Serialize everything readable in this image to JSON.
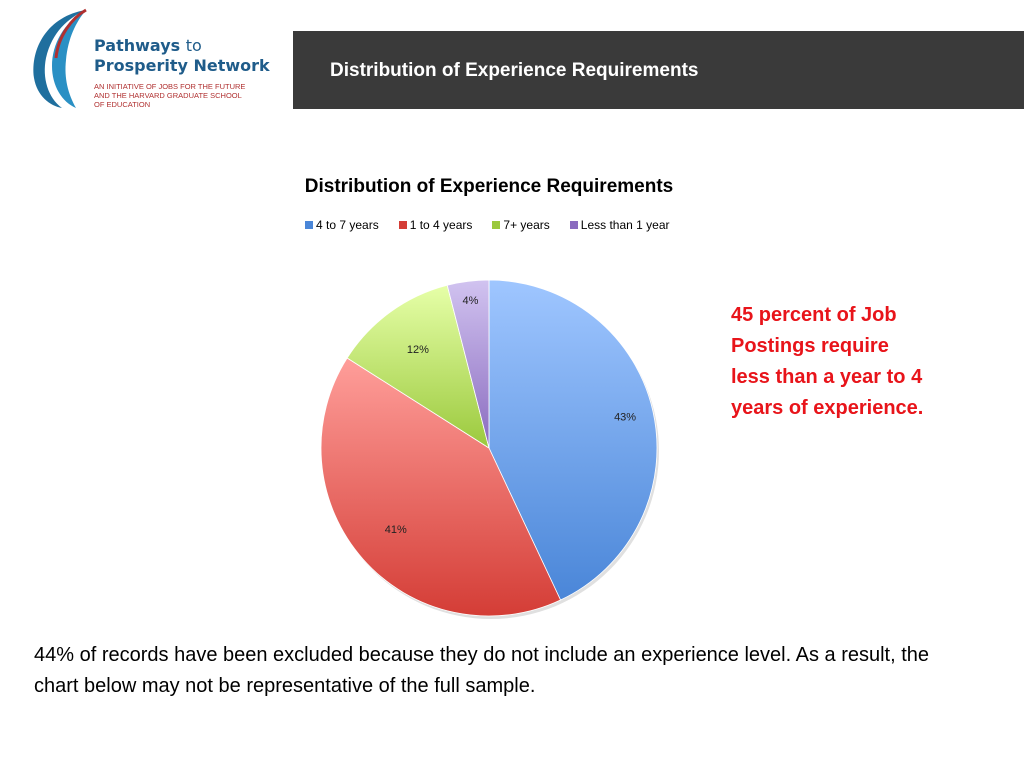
{
  "header": {
    "logo": {
      "name_line1": "Pathways",
      "name_to": "to",
      "name_line2": "Prosperity Network",
      "subtitle_line1": "AN INITIATIVE OF JOBS FOR THE FUTURE",
      "subtitle_line2": "AND THE  HARVARD GRADUATE SCHOOL",
      "subtitle_line3": "OF EDUCATION"
    },
    "title": "Distribution of Experience Requirements"
  },
  "colors": {
    "header_band": "#3a3a3a",
    "annotation": "#e8141a",
    "logo_blue": "#1f5c8a",
    "logo_red": "#b03030"
  },
  "chart_data": {
    "type": "pie",
    "title": "Distribution of Experience Requirements",
    "legend_position": "top",
    "slices": [
      {
        "name": "4 to 7 years",
        "value": 43,
        "label": "43%",
        "color_light": "#9fc6ff",
        "color_dark": "#4a86d8"
      },
      {
        "name": "1 to 4 years",
        "value": 41,
        "label": "41%",
        "color_light": "#ff9e9a",
        "color_dark": "#d43d36"
      },
      {
        "name": "7+ years",
        "value": 12,
        "label": "12%",
        "color_light": "#e6ffa8",
        "color_dark": "#9bc93d"
      },
      {
        "name": "Less than 1 year",
        "value": 4,
        "label": "4%",
        "color_light": "#d1c3f0",
        "color_dark": "#8a6bbf"
      }
    ]
  },
  "annotation": "45 percent of Job Postings require less than a year to 4 years of experience.",
  "footnote": "44% of records have been excluded because they do not include an experience level. As a result, the chart below may not be representative of the full sample."
}
